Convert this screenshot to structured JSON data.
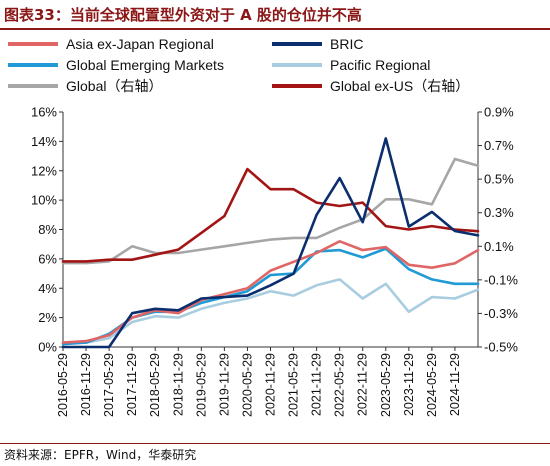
{
  "title": "图表33：当前全球配置型外资对于 A 股的仓位并不高",
  "source": "资料来源：EPFR，Wind，华泰研究",
  "colors": {
    "title": "#8a1616",
    "asia": "#e06666",
    "bric": "#0b2e6e",
    "gem": "#1f9ad6",
    "pacific": "#a9cde0",
    "global": "#a6a6a6",
    "globalexus": "#a31515"
  },
  "legend": [
    {
      "key": "asia",
      "label": "Asia ex-Japan Regional"
    },
    {
      "key": "bric",
      "label": "BRIC"
    },
    {
      "key": "gem",
      "label": "Global Emerging Markets"
    },
    {
      "key": "pacific",
      "label": "Pacific Regional"
    },
    {
      "key": "global",
      "label": "Global（右轴）"
    },
    {
      "key": "globalexus",
      "label": "Global ex-US（右轴）"
    }
  ],
  "chart_data": {
    "type": "line",
    "x": [
      "2016-05-29",
      "2016-11-29",
      "2017-05-29",
      "2017-11-29",
      "2018-05-29",
      "2018-11-29",
      "2019-05-29",
      "2019-11-29",
      "2020-05-29",
      "2020-11-29",
      "2021-05-29",
      "2021-11-29",
      "2022-05-29",
      "2022-11-29",
      "2023-05-29",
      "2023-11-29",
      "2024-05-29",
      "2024-11-29",
      "2025-03-29"
    ],
    "x_tick_labels": [
      "2016-05-29",
      "2016-11-29",
      "2017-05-29",
      "2017-11-29",
      "2018-05-29",
      "2018-11-29",
      "2019-05-29",
      "2019-11-29",
      "2020-05-29",
      "2020-11-29",
      "2021-05-29",
      "2021-11-29",
      "2022-05-29",
      "2022-11-29",
      "2023-05-29",
      "2023-11-29",
      "2024-05-29",
      "2024-11-29"
    ],
    "y_left": {
      "ticks": [
        "0%",
        "2%",
        "4%",
        "6%",
        "8%",
        "10%",
        "12%",
        "14%",
        "16%"
      ],
      "ylim": [
        0,
        16
      ]
    },
    "y_right": {
      "ticks": [
        "-0.5%",
        "-0.3%",
        "-0.1%",
        "0.1%",
        "0.3%",
        "0.5%",
        "0.7%",
        "0.9%"
      ],
      "ylim": [
        -0.5,
        0.9
      ]
    },
    "grid": false,
    "legend_position": "top",
    "series": [
      {
        "name": "Asia ex-Japan Regional",
        "key": "asia",
        "axis": "left",
        "values": [
          0.3,
          0.4,
          0.8,
          2.0,
          2.5,
          2.3,
          3.2,
          3.6,
          4.0,
          5.2,
          5.8,
          6.4,
          7.2,
          6.6,
          6.8,
          5.6,
          5.4,
          5.7,
          6.6
        ]
      },
      {
        "name": "BRIC",
        "key": "bric",
        "axis": "left",
        "values": [
          0.0,
          0.0,
          0.0,
          2.3,
          2.6,
          2.5,
          3.3,
          3.4,
          3.5,
          4.2,
          5.0,
          9.0,
          11.5,
          8.5,
          14.2,
          8.2,
          9.2,
          7.9,
          7.6
        ]
      },
      {
        "name": "Global Emerging Markets",
        "key": "gem",
        "axis": "left",
        "values": [
          0.2,
          0.3,
          0.9,
          2.0,
          2.4,
          2.4,
          3.0,
          3.4,
          3.8,
          4.9,
          5.0,
          6.5,
          6.6,
          6.1,
          6.7,
          5.3,
          4.6,
          4.3,
          4.3
        ]
      },
      {
        "name": "Pacific Regional",
        "key": "pacific",
        "axis": "left",
        "values": [
          0.3,
          0.3,
          0.6,
          1.7,
          2.1,
          2.0,
          2.6,
          3.0,
          3.3,
          3.8,
          3.5,
          4.2,
          4.6,
          3.3,
          4.3,
          2.4,
          3.4,
          3.3,
          3.9
        ]
      },
      {
        "name": "Global（右轴）",
        "key": "global",
        "axis": "right",
        "values": [
          0.0,
          0.0,
          0.01,
          0.1,
          0.06,
          0.06,
          0.08,
          0.1,
          0.12,
          0.14,
          0.15,
          0.15,
          0.21,
          0.26,
          0.38,
          0.38,
          0.35,
          0.62,
          0.58
        ]
      },
      {
        "name": "Global ex-US（右轴）",
        "key": "globalexus",
        "axis": "right",
        "values": [
          0.01,
          0.01,
          0.02,
          0.02,
          0.05,
          0.08,
          0.18,
          0.28,
          0.56,
          0.44,
          0.44,
          0.36,
          0.34,
          0.36,
          0.22,
          0.2,
          0.22,
          0.2,
          0.19
        ]
      }
    ]
  }
}
